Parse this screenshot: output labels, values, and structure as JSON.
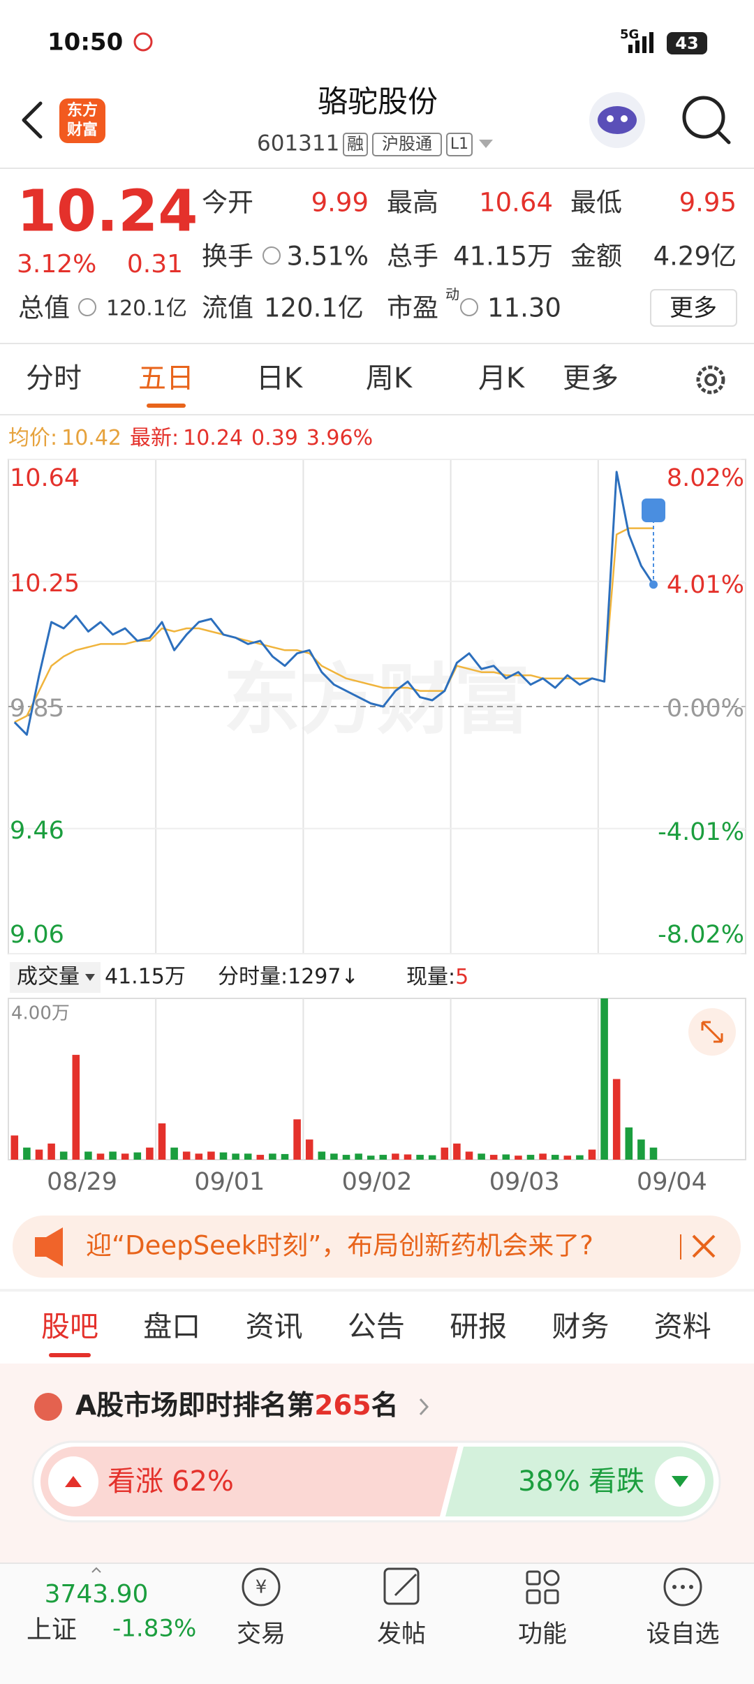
{
  "status_bar": {
    "time": "10:50",
    "network": "5G",
    "battery": "43"
  },
  "header": {
    "logo": [
      "东方",
      "财富"
    ],
    "title": "骆驼股份",
    "code": "601311",
    "tags": [
      "融",
      "沪股通",
      "L1"
    ]
  },
  "quote": {
    "price": "10.24",
    "change_pct": "3.12%",
    "change": "0.31",
    "open": {
      "label": "今开",
      "value": "9.99"
    },
    "high": {
      "label": "最高",
      "value": "10.64"
    },
    "low": {
      "label": "最低",
      "value": "9.95"
    },
    "turnover": {
      "label": "换手",
      "value": "3.51%"
    },
    "volume": {
      "label": "总手",
      "value": "41.15万"
    },
    "amount": {
      "label": "金额",
      "value": "4.29亿"
    },
    "market_cap": {
      "label": "总值",
      "value": "120.1亿"
    },
    "float_cap": {
      "label": "流值",
      "value": "120.1亿"
    },
    "pe": {
      "label": "市盈",
      "tag": "动",
      "value": "11.30"
    },
    "more": "更多"
  },
  "tabs": {
    "items": [
      "分时",
      "五日",
      "日K",
      "周K",
      "月K",
      "更多"
    ],
    "active": 1
  },
  "chart_info": {
    "avg_label": "均价:",
    "avg": "10.42",
    "latest_label": "最新:",
    "latest": "10.24",
    "change": "0.39",
    "change_pct": "3.96%"
  },
  "chart_data": [
    {
      "type": "line",
      "categories": [
        "08/29",
        "09/01",
        "09/02",
        "09/03",
        "09/04"
      ],
      "series": [
        {
          "name": "price",
          "color": "#2c6fbd",
          "values": [
            [
              9.8,
              9.76,
              9.95,
              10.12,
              10.1,
              10.14,
              10.09,
              10.12,
              10.08,
              10.1,
              10.06,
              10.07
            ],
            [
              10.12,
              10.03,
              10.08,
              10.12,
              10.13,
              10.08,
              10.07,
              10.05,
              10.06,
              10.01,
              9.98,
              10.02
            ],
            [
              10.03,
              9.96,
              9.92,
              9.9,
              9.88,
              9.86,
              9.85,
              9.9,
              9.93,
              9.88,
              9.87,
              9.9
            ],
            [
              9.99,
              10.02,
              9.97,
              9.98,
              9.94,
              9.96,
              9.92,
              9.94,
              9.91,
              9.95,
              9.92,
              9.94
            ],
            [
              9.93,
              10.6,
              10.4,
              10.3,
              10.24
            ]
          ]
        },
        {
          "name": "average",
          "color": "#f0b43c",
          "values": [
            [
              9.8,
              9.82,
              9.9,
              9.98,
              10.01,
              10.03,
              10.04,
              10.05,
              10.05,
              10.05,
              10.06,
              10.06
            ],
            [
              10.1,
              10.09,
              10.1,
              10.1,
              10.09,
              10.08,
              10.07,
              10.06,
              10.05,
              10.04,
              10.03,
              10.03
            ],
            [
              10.02,
              9.98,
              9.96,
              9.94,
              9.93,
              9.92,
              9.91,
              9.91,
              9.91,
              9.9,
              9.9,
              9.9
            ],
            [
              9.98,
              9.97,
              9.96,
              9.96,
              9.95,
              9.95,
              9.95,
              9.94,
              9.94,
              9.94,
              9.94,
              9.94
            ],
            [
              9.93,
              10.4,
              10.42,
              10.42,
              10.42
            ]
          ]
        }
      ],
      "ylim": [
        9.06,
        10.64
      ],
      "yticks": [
        10.64,
        10.25,
        9.85,
        9.46,
        9.06
      ],
      "y2lim": [
        -8.02,
        8.02
      ],
      "y2ticks": [
        {
          "value": 8.02,
          "label": "8.02%"
        },
        {
          "value": 4.01,
          "label": "4.01%"
        },
        {
          "value": 0,
          "label": "0.00%"
        },
        {
          "value": -4.01,
          "label": "-4.01%"
        },
        {
          "value": -8.02,
          "label": "-8.02%"
        }
      ],
      "grid": true
    },
    {
      "type": "bar",
      "up_color": "#e4312b",
      "down_color": "#1b9e3e",
      "values": [
        [
          6000,
          3000,
          2500,
          4000,
          2000,
          26000,
          2000,
          1500,
          2000,
          1500,
          1800,
          3000
        ],
        [
          9000,
          3000,
          2000,
          1500,
          2000,
          1800,
          1500,
          1500,
          1200,
          1500,
          1400,
          10000
        ],
        [
          5000,
          2000,
          1500,
          1200,
          1500,
          1000,
          1200,
          1500,
          1300,
          1200,
          1100,
          3000
        ],
        [
          4000,
          2000,
          1500,
          1200,
          1300,
          1000,
          1200,
          1500,
          1200,
          1000,
          1100,
          2500
        ],
        [
          40000,
          20000,
          8000,
          5000,
          3000
        ]
      ],
      "ylim": [
        0,
        40000
      ],
      "yticks": [
        {
          "value": 40000,
          "label": "4.00万"
        }
      ]
    }
  ],
  "volume_info": {
    "label": "成交量",
    "total": "41.15万",
    "period": "分时量:1297↓",
    "current_label": "现量:",
    "current": "5"
  },
  "watermark": "东方财富",
  "banner": {
    "text": "迎“DeepSeek时刻”，布局创新药机会来了?"
  },
  "section_tabs": {
    "items": [
      "股吧",
      "盘口",
      "资讯",
      "公告",
      "研报",
      "财务",
      "资料"
    ],
    "active": 0
  },
  "ranking": {
    "prefix": "A股市场即时排名第",
    "rank": "265",
    "suffix": "名"
  },
  "sentiment": {
    "up_label": "看涨",
    "up": "62%",
    "down": "38%",
    "down_label": "看跌"
  },
  "bottom_nav": {
    "index": {
      "value": "3743.90",
      "name": "上证",
      "change": "-1.83%"
    },
    "items": [
      "交易",
      "发帖",
      "功能",
      "设自选"
    ]
  }
}
